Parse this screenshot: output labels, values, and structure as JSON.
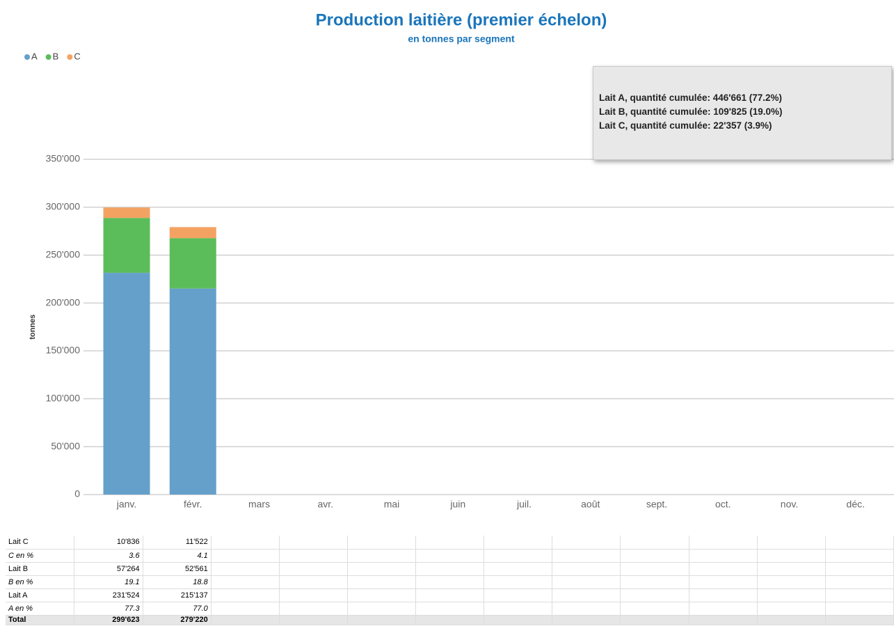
{
  "chart_data": {
    "type": "stacked_bar",
    "title": "Production laitière (premier échelon)",
    "subtitle": "en tonnes par segment",
    "y_label": "tonnes",
    "categories": [
      "janv.",
      "févr.",
      "mars",
      "avr.",
      "mai",
      "juin",
      "juil.",
      "août",
      "sept.",
      "oct.",
      "nov.",
      "déc."
    ],
    "series": [
      {
        "name": "A",
        "color": "#65a0cb",
        "values": [
          231524,
          215137,
          null,
          null,
          null,
          null,
          null,
          null,
          null,
          null,
          null,
          null
        ]
      },
      {
        "name": "B",
        "color": "#5bbd5a",
        "values": [
          57264,
          52561,
          null,
          null,
          null,
          null,
          null,
          null,
          null,
          null,
          null,
          null
        ]
      },
      {
        "name": "C",
        "color": "#f4a262",
        "values": [
          10836,
          11522,
          null,
          null,
          null,
          null,
          null,
          null,
          null,
          null,
          null,
          null
        ]
      }
    ],
    "ylim": [
      0,
      350000
    ],
    "yticks": [
      0,
      {
        "value": 50000,
        "label": "50'000"
      },
      {
        "value": 100000,
        "label": "100'000"
      },
      {
        "value": 150000,
        "label": "150'000"
      },
      {
        "value": 200000,
        "label": "200'000"
      },
      {
        "value": 250000,
        "label": "250'000"
      },
      {
        "value": 300000,
        "label": "300'000"
      },
      {
        "value": 350000,
        "label": "350'000"
      }
    ],
    "grid": true,
    "legend": "top-left",
    "tooltip": [
      "Lait A, quantité cumulée: 446'661 (77.2%)",
      "Lait B, quantité cumulée: 109'825 (19.0%)",
      "Lait C, quantité cumulée: 22'357 (3.9%)"
    ]
  },
  "table": {
    "rows": [
      {
        "label": "Lait C",
        "cells": [
          "10'836",
          "11'522"
        ]
      },
      {
        "label": "C en %",
        "cells": [
          "3.6",
          "4.1"
        ]
      },
      {
        "label": "Lait B",
        "cells": [
          "57'264",
          "52'561"
        ]
      },
      {
        "label": "B en %",
        "cells": [
          "19.1",
          "18.8"
        ]
      },
      {
        "label": "Lait A",
        "cells": [
          "231'524",
          "215'137"
        ]
      },
      {
        "label": "A en %",
        "cells": [
          "77.3",
          "77.0"
        ]
      },
      {
        "label": "Total",
        "cells": [
          "299'623",
          "279'220"
        ]
      }
    ]
  }
}
